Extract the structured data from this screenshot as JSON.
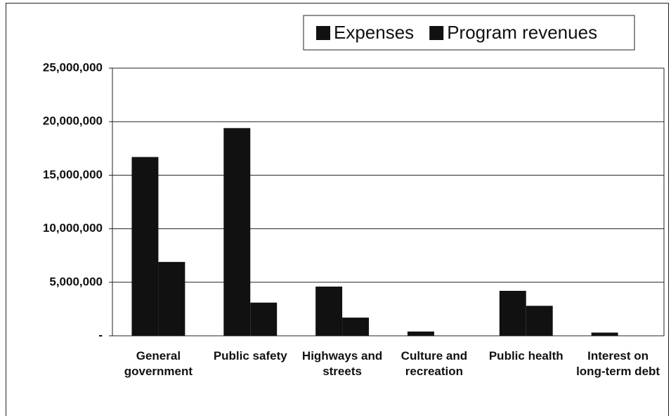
{
  "chart_data": {
    "type": "bar",
    "categories": [
      "General government",
      "Public safety",
      "Highways and streets",
      "Culture and recreation",
      "Public health",
      "Interest on long-term debt"
    ],
    "series": [
      {
        "name": "Expenses",
        "color": "#111111",
        "values": [
          16700000,
          19400000,
          4600000,
          400000,
          4200000,
          300000
        ]
      },
      {
        "name": "Program revenues",
        "color": "#111111",
        "values": [
          6900000,
          3100000,
          1700000,
          0,
          2800000,
          0
        ]
      }
    ],
    "ylim": [
      0,
      25000000
    ],
    "yticks": [
      {
        "value": 0,
        "label": "-"
      },
      {
        "value": 5000000,
        "label": "5,000,000"
      },
      {
        "value": 10000000,
        "label": "10,000,000"
      },
      {
        "value": 15000000,
        "label": "15,000,000"
      },
      {
        "value": 20000000,
        "label": "20,000,000"
      },
      {
        "value": 25000000,
        "label": "25,000,000"
      }
    ],
    "grid": true,
    "legend": "top-right"
  }
}
